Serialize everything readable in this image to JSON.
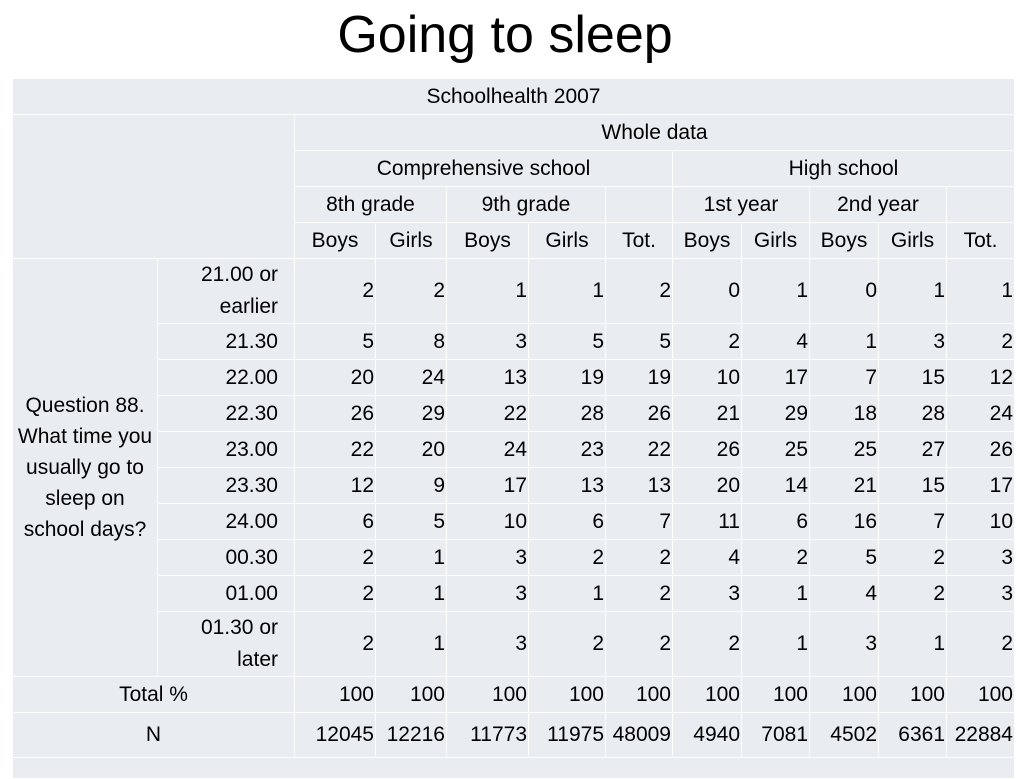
{
  "title": "Going to sleep",
  "table": {
    "survey": "Schoolhealth 2007",
    "scope": "Whole data",
    "schools": [
      "Comprehensive school",
      "High school"
    ],
    "grades": [
      "8th grade",
      "9th grade",
      "",
      "1st year",
      "2nd year",
      ""
    ],
    "columns": [
      "Boys",
      "Girls",
      "Boys",
      "Girls",
      "Tot.",
      "Boys",
      "Girls",
      "Boys",
      "Girls",
      "Tot."
    ],
    "question": "Question 88. What time you usually go to sleep on school days?",
    "rows": [
      {
        "label": "21.00 or earlier",
        "values": [
          "2",
          "2",
          "1",
          "1",
          "2",
          "0",
          "1",
          "0",
          "1",
          "1"
        ]
      },
      {
        "label": "21.30",
        "values": [
          "5",
          "8",
          "3",
          "5",
          "5",
          "2",
          "4",
          "1",
          "3",
          "2"
        ]
      },
      {
        "label": "22.00",
        "values": [
          "20",
          "24",
          "13",
          "19",
          "19",
          "10",
          "17",
          "7",
          "15",
          "12"
        ]
      },
      {
        "label": "22.30",
        "values": [
          "26",
          "29",
          "22",
          "28",
          "26",
          "21",
          "29",
          "18",
          "28",
          "24"
        ]
      },
      {
        "label": "23.00",
        "values": [
          "22",
          "20",
          "24",
          "23",
          "22",
          "26",
          "25",
          "25",
          "27",
          "26"
        ]
      },
      {
        "label": "23.30",
        "values": [
          "12",
          "9",
          "17",
          "13",
          "13",
          "20",
          "14",
          "21",
          "15",
          "17"
        ]
      },
      {
        "label": "24.00",
        "values": [
          "6",
          "5",
          "10",
          "6",
          "7",
          "11",
          "6",
          "16",
          "7",
          "10"
        ]
      },
      {
        "label": "00.30",
        "values": [
          "2",
          "1",
          "3",
          "2",
          "2",
          "4",
          "2",
          "5",
          "2",
          "3"
        ]
      },
      {
        "label": "01.00",
        "values": [
          "2",
          "1",
          "3",
          "1",
          "2",
          "3",
          "1",
          "4",
          "2",
          "3"
        ]
      },
      {
        "label": "01.30 or later",
        "values": [
          "2",
          "1",
          "3",
          "2",
          "2",
          "2",
          "1",
          "3",
          "1",
          "2"
        ]
      }
    ],
    "total": {
      "label": "Total %",
      "values": [
        "100",
        "100",
        "100",
        "100",
        "100",
        "100",
        "100",
        "100",
        "100",
        "100"
      ]
    },
    "n": {
      "label": "N",
      "values": [
        "12045",
        "12216",
        "11773",
        "11975",
        "48009",
        "4940",
        "7081",
        "4502",
        "6361",
        "22884"
      ]
    }
  }
}
